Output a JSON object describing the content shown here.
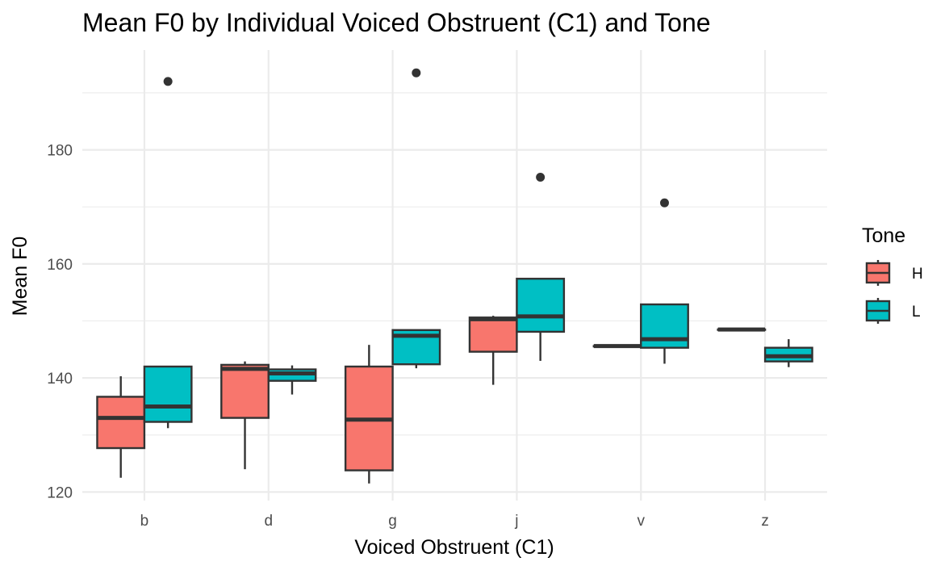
{
  "chart_data": {
    "type": "boxplot",
    "title": "Mean F0 by Individual Voiced Obstruent (C1) and Tone",
    "xlabel": "Voiced Obstruent (C1)",
    "ylabel": "Mean F0",
    "categories": [
      "b",
      "d",
      "g",
      "j",
      "v",
      "z"
    ],
    "ylim": [
      118.5,
      197.5
    ],
    "yticks": [
      120,
      140,
      160,
      180
    ],
    "grid": true,
    "legend": {
      "title": "Tone",
      "position": "right"
    },
    "series": [
      {
        "name": "H",
        "color": "#F8766D",
        "boxes": [
          {
            "category": "b",
            "whisker_low": 122.5,
            "q1": 127.7,
            "median": 133.0,
            "q3": 136.7,
            "whisker_high": 140.3,
            "outliers": []
          },
          {
            "category": "d",
            "whisker_low": 124.0,
            "q1": 133.0,
            "median": 141.6,
            "q3": 142.3,
            "whisker_high": 142.9,
            "outliers": []
          },
          {
            "category": "g",
            "whisker_low": 121.5,
            "q1": 123.8,
            "median": 132.7,
            "q3": 142.0,
            "whisker_high": 145.8,
            "outliers": []
          },
          {
            "category": "j",
            "whisker_low": 138.8,
            "q1": 144.6,
            "median": 150.3,
            "q3": 150.6,
            "whisker_high": 150.9,
            "outliers": []
          },
          {
            "category": "v",
            "whisker_low": 145.6,
            "q1": 145.6,
            "median": 145.6,
            "q3": 145.6,
            "whisker_high": 145.6,
            "outliers": []
          },
          {
            "category": "z",
            "whisker_low": 148.5,
            "q1": 148.5,
            "median": 148.5,
            "q3": 148.5,
            "whisker_high": 148.5,
            "outliers": []
          }
        ]
      },
      {
        "name": "L",
        "color": "#00BFC4",
        "boxes": [
          {
            "category": "b",
            "whisker_low": 131.2,
            "q1": 132.3,
            "median": 135.0,
            "q3": 142.0,
            "whisker_high": 142.0,
            "outliers": [
              192.0
            ]
          },
          {
            "category": "d",
            "whisker_low": 137.1,
            "q1": 139.5,
            "median": 140.8,
            "q3": 141.5,
            "whisker_high": 142.2,
            "outliers": []
          },
          {
            "category": "g",
            "whisker_low": 141.7,
            "q1": 142.4,
            "median": 147.4,
            "q3": 148.4,
            "whisker_high": 148.4,
            "outliers": [
              193.5
            ]
          },
          {
            "category": "j",
            "whisker_low": 143.0,
            "q1": 148.1,
            "median": 150.8,
            "q3": 157.4,
            "whisker_high": 157.4,
            "outliers": [
              175.2
            ]
          },
          {
            "category": "v",
            "whisker_low": 142.5,
            "q1": 145.3,
            "median": 146.8,
            "q3": 152.9,
            "whisker_high": 152.9,
            "outliers": [
              170.7
            ]
          },
          {
            "category": "z",
            "whisker_low": 141.9,
            "q1": 142.9,
            "median": 143.8,
            "q3": 145.3,
            "whisker_high": 146.8,
            "outliers": []
          }
        ]
      }
    ]
  }
}
